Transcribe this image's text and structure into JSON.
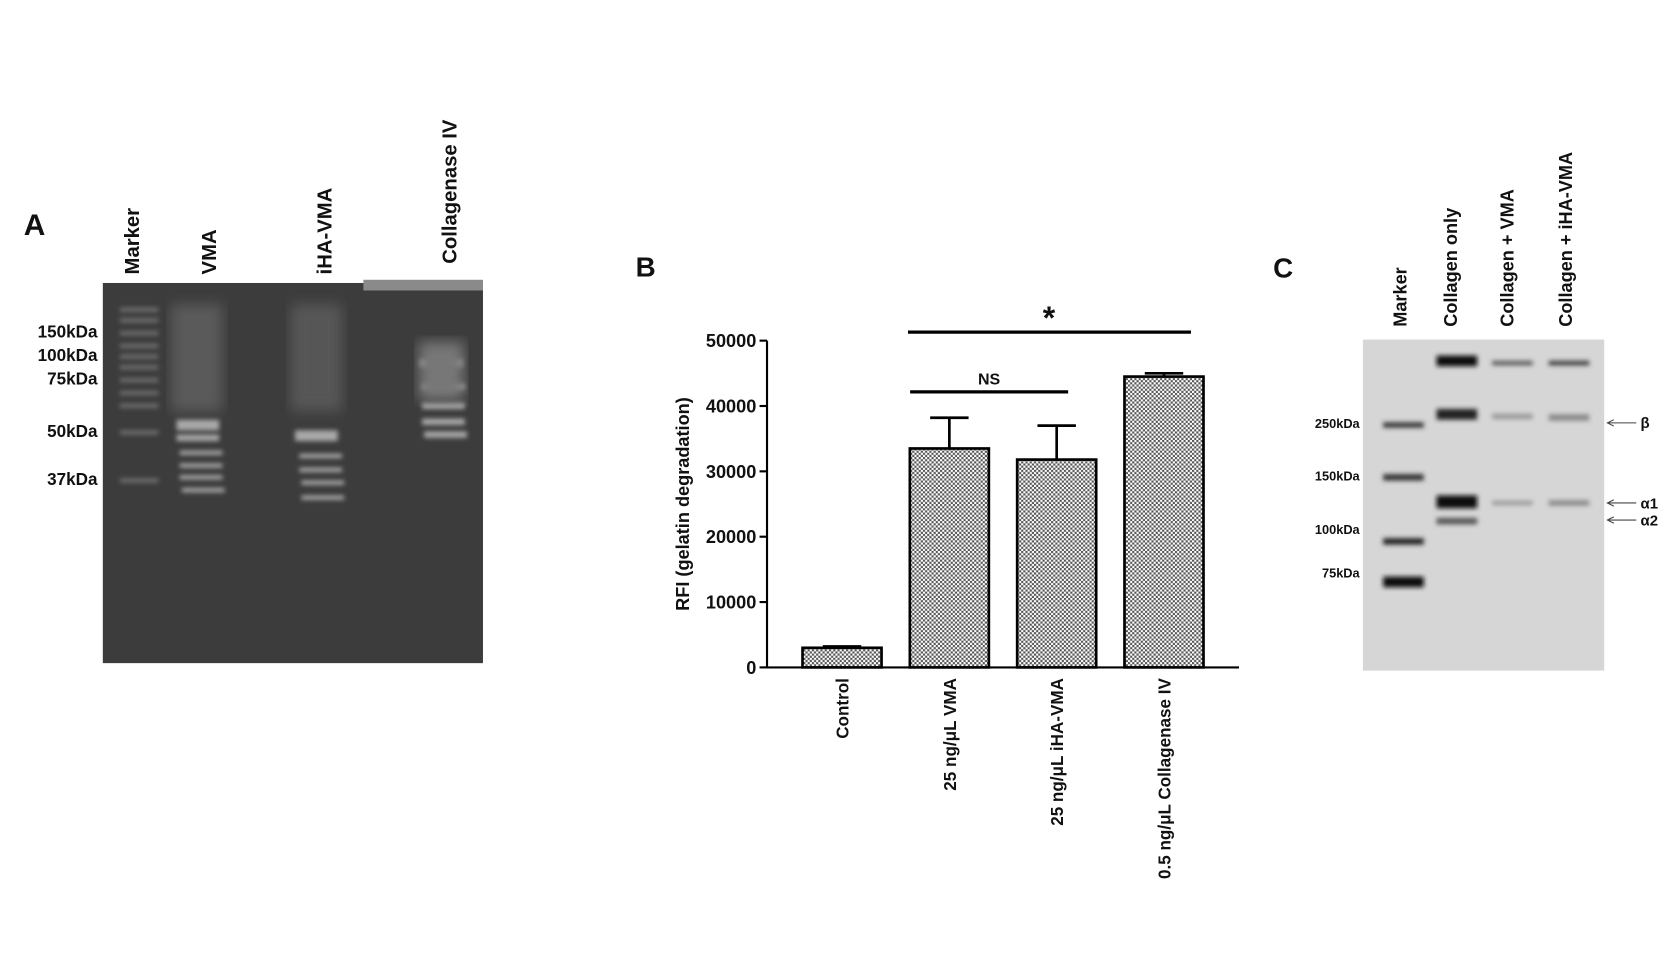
{
  "panel_a": {
    "label": "A",
    "lanes": [
      "Marker",
      "VMA",
      "iHA-VMA",
      "Collagenase IV"
    ],
    "markers": [
      "150kDa",
      "100kDa",
      "75kDa",
      "50kDa",
      "37kDa"
    ]
  },
  "chart_data": {
    "type": "bar",
    "label": "B",
    "y_label": "RFI (gelatin degradation)",
    "categories": [
      "Control",
      "25 ng/μL VMA",
      "25 ng/μL iHA-VMA",
      "0.5 ng/μL Collagenase IV"
    ],
    "values": [
      3000,
      33500,
      31800,
      44500
    ],
    "errors": [
      200,
      4700,
      5200,
      500
    ],
    "color": "#555555",
    "ylim": [
      0,
      50000
    ],
    "yticks": [
      0,
      10000,
      20000,
      30000,
      40000,
      50000
    ],
    "annotations": [
      "*",
      "NS"
    ]
  },
  "panel_c": {
    "label": "C",
    "lanes": [
      "Marker",
      "Collagen only",
      "Collagen + VMA",
      "Collagen + iHA-VMA"
    ],
    "markers": [
      "250kDa",
      "150kDa",
      "100kDa",
      "75kDa"
    ],
    "bands": [
      "β",
      "α1",
      "α2"
    ]
  }
}
